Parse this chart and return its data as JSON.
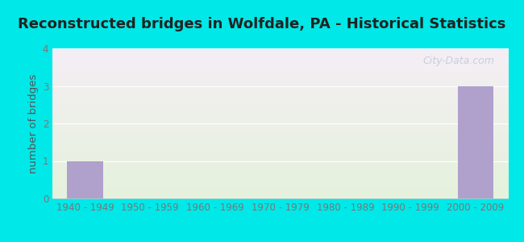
{
  "title": "Reconstructed bridges in Wolfdale, PA - Historical Statistics",
  "ylabel": "number of bridges",
  "categories": [
    "1940 - 1949",
    "1950 - 1959",
    "1960 - 1969",
    "1970 - 1979",
    "1980 - 1989",
    "1990 - 1999",
    "2000 - 2009"
  ],
  "values": [
    1,
    0,
    0,
    0,
    0,
    0,
    3
  ],
  "bar_color": "#b0a0cc",
  "ylim": [
    0,
    4
  ],
  "yticks": [
    0,
    1,
    2,
    3,
    4
  ],
  "background_outer": "#00e8e8",
  "background_plot_top": "#f5eef5",
  "background_plot_bottom": "#e5f2dc",
  "title_fontsize": 13,
  "axis_label_fontsize": 9.5,
  "tick_fontsize": 8.5,
  "title_color": "#222222",
  "axis_label_color": "#555555",
  "tick_color": "#777777",
  "watermark": "City-Data.com",
  "watermark_color": "#aabbcc",
  "grid_color": "#ffffff",
  "bar_width": 0.55
}
